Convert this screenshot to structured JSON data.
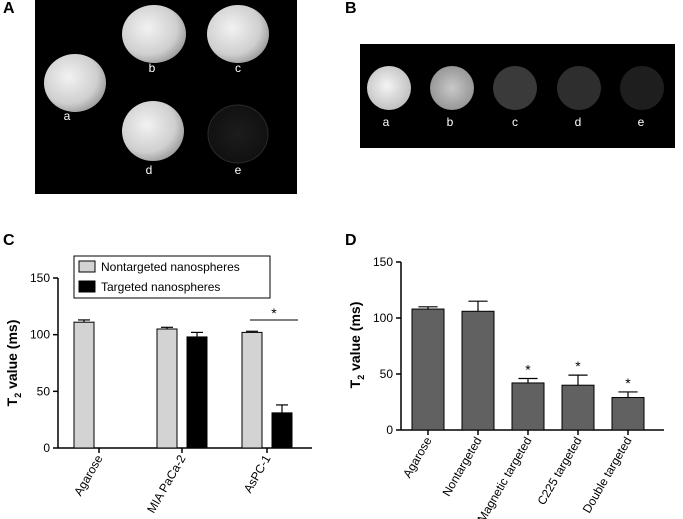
{
  "panels": {
    "A": {
      "letter": "A",
      "samples": [
        "a",
        "b",
        "c",
        "d",
        "e"
      ]
    },
    "B": {
      "letter": "B",
      "samples": [
        "a",
        "b",
        "c",
        "d",
        "e"
      ]
    },
    "C": {
      "letter": "C"
    },
    "D": {
      "letter": "D"
    }
  },
  "colors": {
    "nontargeted_fill": "#d3d3d3",
    "targeted_fill": "#000000",
    "panel_d_fill": "#616161",
    "mri_background": "#000000"
  },
  "chart_data": [
    {
      "panel": "C",
      "type": "bar",
      "categories": [
        "Agarose",
        "MIA PaCa-2",
        "AsPC-1"
      ],
      "series": [
        {
          "name": "Nontargeted nanospheres",
          "values": [
            111,
            105,
            102
          ],
          "errors": [
            2,
            1.5,
            1
          ],
          "color": "#d3d3d3"
        },
        {
          "name": "Targeted nanospheres",
          "values": [
            null,
            98,
            31
          ],
          "errors": [
            null,
            4,
            7
          ],
          "color": "#000000"
        }
      ],
      "ylabel_main": "T",
      "ylabel_sub": "2",
      "ylabel_rest": " value (ms)",
      "yticks": [
        0,
        50,
        100,
        150
      ],
      "ylim": [
        0,
        150
      ],
      "legend": "top-inside",
      "significance": {
        "label": "*",
        "category": "AsPC-1"
      }
    },
    {
      "panel": "D",
      "type": "bar",
      "categories": [
        "Agarose",
        "Nontargeted",
        "Magnetic targeted",
        "C225 targeted",
        "Double targeted"
      ],
      "values": [
        108,
        106,
        42,
        40,
        29
      ],
      "errors": [
        2,
        9,
        4,
        9,
        5
      ],
      "significance": [
        "",
        "",
        "*",
        "*",
        "*"
      ],
      "ylabel_main": "T",
      "ylabel_sub": "2",
      "ylabel_rest": " value (ms)",
      "yticks": [
        0,
        50,
        100,
        150
      ],
      "ylim": [
        0,
        150
      ]
    }
  ]
}
